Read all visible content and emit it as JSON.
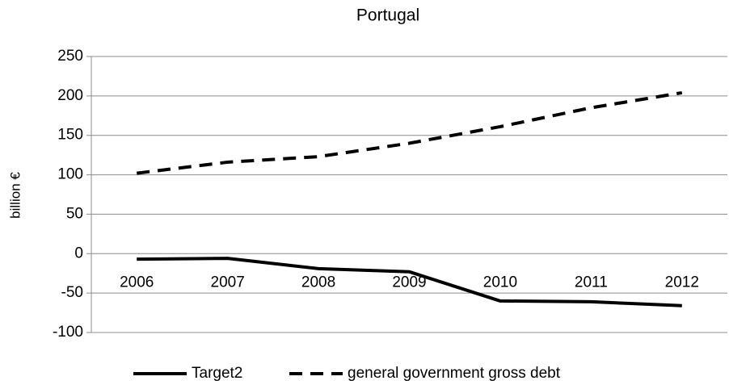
{
  "chart_data": {
    "type": "line",
    "title": "Portugal",
    "y_label": "billion €",
    "categories": [
      "2006",
      "2007",
      "2008",
      "2009",
      "2010",
      "2011",
      "2012"
    ],
    "series": [
      {
        "name": "Target2",
        "color": "#000000",
        "dash": "solid",
        "values": [
          -7,
          -6,
          -19,
          -23,
          -60,
          -61,
          -66
        ]
      },
      {
        "name": "general government gross debt",
        "color": "#000000",
        "dash": "dashed",
        "values": [
          102,
          116,
          123,
          140,
          161,
          185,
          204
        ]
      }
    ],
    "ylim": [
      -100,
      250
    ],
    "yticks": [
      -100,
      -50,
      0,
      50,
      100,
      150,
      200,
      250
    ],
    "grid": true,
    "legend": "bottom"
  }
}
